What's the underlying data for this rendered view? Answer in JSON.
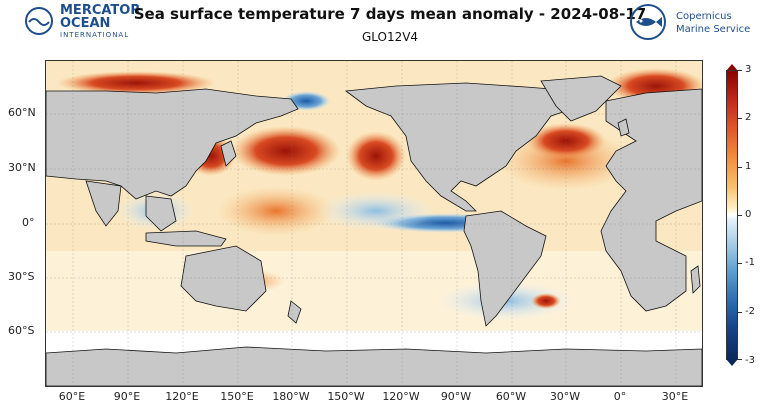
{
  "header": {
    "title": "Sea surface temperature 7 days mean anomaly - 2024-08-17",
    "subtitle": "GLO12V4"
  },
  "logos": {
    "mercator": {
      "line1": "MERCATOR",
      "line2": "OCEAN",
      "line3": "INTERNATIONAL",
      "color": "#1f4e8c"
    },
    "copernicus": {
      "line1": "Copernicus",
      "line2": "Marine Service",
      "color": "#1f4e8c"
    }
  },
  "map": {
    "lat_labels": [
      "60°N",
      "30°N",
      "0°",
      "30°S",
      "60°S"
    ],
    "lon_labels": [
      "60°E",
      "90°E",
      "120°E",
      "150°E",
      "180°W",
      "150°W",
      "120°W",
      "90°W",
      "60°W",
      "30°W",
      "0°",
      "30°E"
    ],
    "land_color": "#c8c8c8",
    "coast_color": "#111111"
  },
  "colorbar": {
    "labels": [
      "3",
      "2",
      "1",
      "0",
      "-1",
      "-2",
      "-3"
    ],
    "min": -3,
    "max": 3
  }
}
